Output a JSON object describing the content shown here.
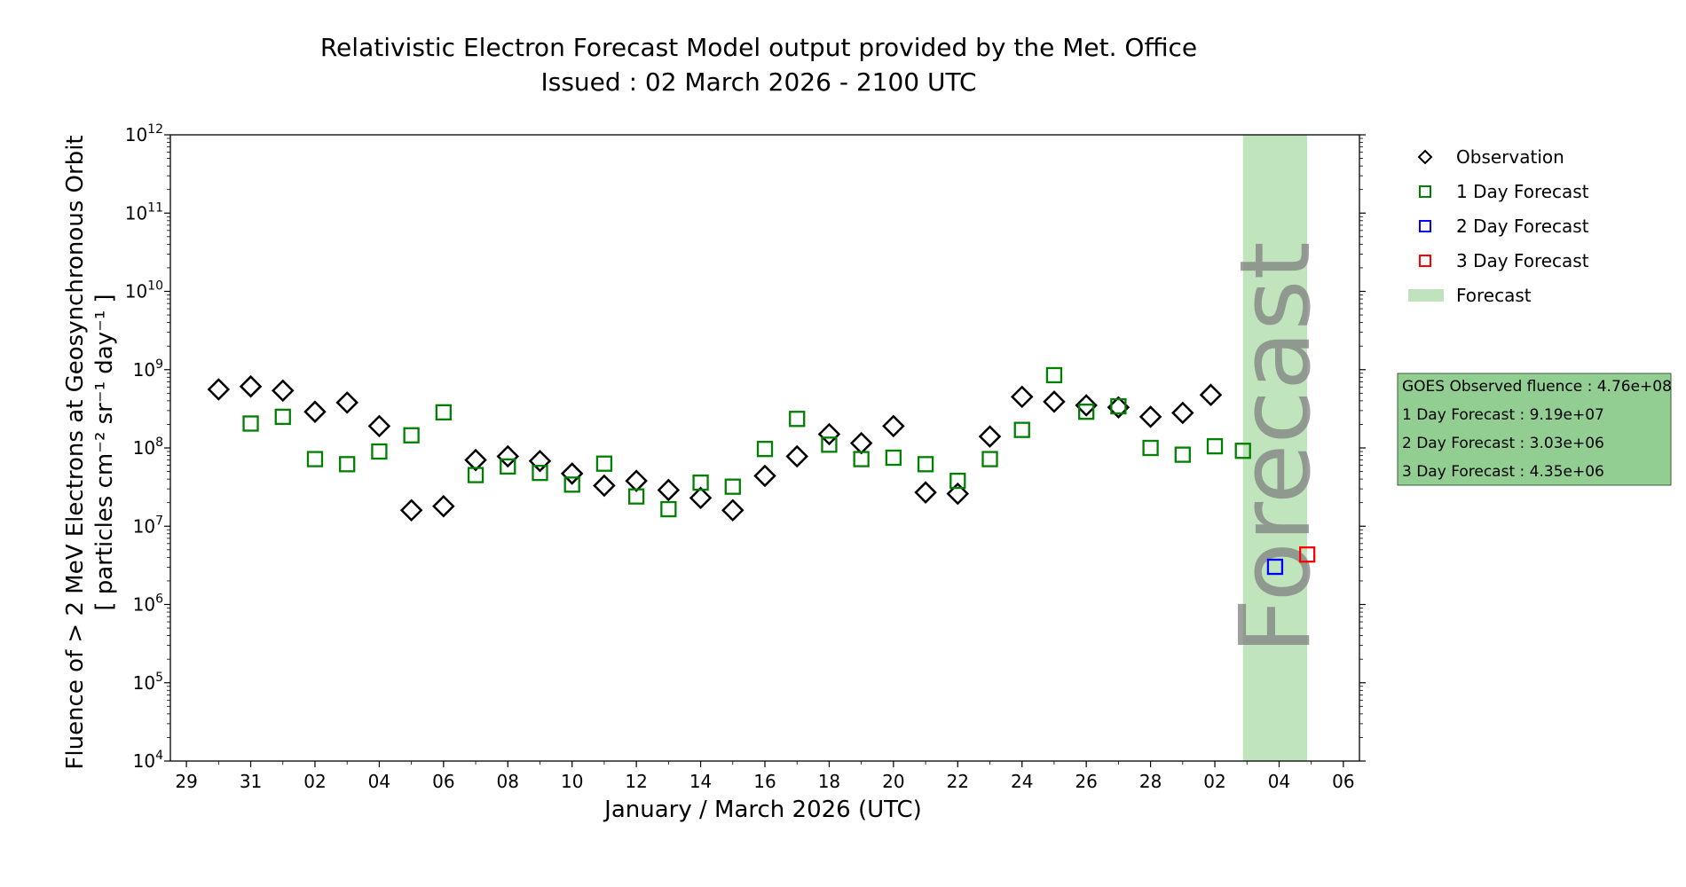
{
  "chart_data": {
    "type": "scatter",
    "title": "Relativistic Electron Forecast Model output provided by the Met. Office",
    "subtitle": "Issued : 02 March 2026 - 2100 UTC",
    "xlabel": "January / March 2026 (UTC)",
    "ylabel_line1": "Fluence of > 2 MeV Electrons at Geosynchronous Orbit",
    "ylabel_line2": "[ particles cm⁻² sr⁻¹ day⁻¹ ]",
    "y_scale": "log",
    "ylim": [
      10000,
      1000000000000
    ],
    "y_ticks": [
      {
        "value": 10000,
        "base": "10",
        "exp": "4"
      },
      {
        "value": 100000,
        "base": "10",
        "exp": "5"
      },
      {
        "value": 1000000,
        "base": "10",
        "exp": "6"
      },
      {
        "value": 10000000,
        "base": "10",
        "exp": "7"
      },
      {
        "value": 100000000,
        "base": "10",
        "exp": "8"
      },
      {
        "value": 1000000000,
        "base": "10",
        "exp": "9"
      },
      {
        "value": 10000000000,
        "base": "10",
        "exp": "10"
      },
      {
        "value": 100000000000,
        "base": "10",
        "exp": "11"
      },
      {
        "value": 1000000000000,
        "base": "10",
        "exp": "12"
      }
    ],
    "xlim": [
      "2026-01-28T12:00",
      "2026-03-06T12:00"
    ],
    "x_ticks": [
      {
        "date": "2026-01-29",
        "label": "29"
      },
      {
        "date": "2026-01-31",
        "label": "31"
      },
      {
        "date": "2026-02-02",
        "label": "02"
      },
      {
        "date": "2026-02-04",
        "label": "04"
      },
      {
        "date": "2026-02-06",
        "label": "06"
      },
      {
        "date": "2026-02-08",
        "label": "08"
      },
      {
        "date": "2026-02-10",
        "label": "10"
      },
      {
        "date": "2026-02-12",
        "label": "12"
      },
      {
        "date": "2026-02-14",
        "label": "14"
      },
      {
        "date": "2026-02-16",
        "label": "16"
      },
      {
        "date": "2026-02-18",
        "label": "18"
      },
      {
        "date": "2026-02-20",
        "label": "20"
      },
      {
        "date": "2026-02-22",
        "label": "22"
      },
      {
        "date": "2026-02-24",
        "label": "24"
      },
      {
        "date": "2026-02-26",
        "label": "26"
      },
      {
        "date": "2026-02-28",
        "label": "28"
      },
      {
        "date": "2026-03-02",
        "label": "02"
      },
      {
        "date": "2026-03-04",
        "label": "04"
      },
      {
        "date": "2026-03-06",
        "label": "06"
      }
    ],
    "series": [
      {
        "name": "Observation",
        "marker": "diamond",
        "color": "#000000",
        "points": [
          {
            "x": "2026-01-30",
            "y": 560000000
          },
          {
            "x": "2026-01-31",
            "y": 610000000
          },
          {
            "x": "2026-02-01",
            "y": 540000000
          },
          {
            "x": "2026-02-02",
            "y": 290000000
          },
          {
            "x": "2026-02-03",
            "y": 380000000
          },
          {
            "x": "2026-02-04",
            "y": 190000000
          },
          {
            "x": "2026-02-05",
            "y": 16000000
          },
          {
            "x": "2026-02-06",
            "y": 18000000
          },
          {
            "x": "2026-02-07",
            "y": 70000000
          },
          {
            "x": "2026-02-08",
            "y": 78000000
          },
          {
            "x": "2026-02-09",
            "y": 68000000
          },
          {
            "x": "2026-02-10",
            "y": 47000000
          },
          {
            "x": "2026-02-11",
            "y": 33000000
          },
          {
            "x": "2026-02-12",
            "y": 38000000
          },
          {
            "x": "2026-02-13",
            "y": 29000000
          },
          {
            "x": "2026-02-14",
            "y": 23000000
          },
          {
            "x": "2026-02-15",
            "y": 16000000
          },
          {
            "x": "2026-02-16",
            "y": 44000000
          },
          {
            "x": "2026-02-17",
            "y": 78000000
          },
          {
            "x": "2026-02-18",
            "y": 150000000
          },
          {
            "x": "2026-02-19",
            "y": 115000000
          },
          {
            "x": "2026-02-20",
            "y": 190000000
          },
          {
            "x": "2026-02-21",
            "y": 27000000
          },
          {
            "x": "2026-02-22",
            "y": 26000000
          },
          {
            "x": "2026-02-23",
            "y": 140000000
          },
          {
            "x": "2026-02-24",
            "y": 450000000
          },
          {
            "x": "2026-02-25",
            "y": 390000000
          },
          {
            "x": "2026-02-26",
            "y": 350000000
          },
          {
            "x": "2026-02-27",
            "y": 330000000
          },
          {
            "x": "2026-02-28",
            "y": 250000000
          },
          {
            "x": "2026-03-01",
            "y": 280000000
          },
          {
            "x": "2026-03-01T21:00",
            "y": 476000000
          }
        ]
      },
      {
        "name": "1 Day Forecast",
        "marker": "square",
        "color": "#008000",
        "points": [
          {
            "x": "2026-01-31",
            "y": 205000000
          },
          {
            "x": "2026-02-01",
            "y": 250000000
          },
          {
            "x": "2026-02-02",
            "y": 72000000
          },
          {
            "x": "2026-02-03",
            "y": 62000000
          },
          {
            "x": "2026-02-04",
            "y": 90000000
          },
          {
            "x": "2026-02-05",
            "y": 145000000
          },
          {
            "x": "2026-02-06",
            "y": 285000000
          },
          {
            "x": "2026-02-07",
            "y": 45000000
          },
          {
            "x": "2026-02-08",
            "y": 58000000
          },
          {
            "x": "2026-02-09",
            "y": 48000000
          },
          {
            "x": "2026-02-10",
            "y": 34000000
          },
          {
            "x": "2026-02-11",
            "y": 63000000
          },
          {
            "x": "2026-02-12",
            "y": 24000000
          },
          {
            "x": "2026-02-13",
            "y": 16500000
          },
          {
            "x": "2026-02-14",
            "y": 36000000
          },
          {
            "x": "2026-02-15",
            "y": 32000000
          },
          {
            "x": "2026-02-16",
            "y": 97000000
          },
          {
            "x": "2026-02-17",
            "y": 235000000
          },
          {
            "x": "2026-02-18",
            "y": 110000000
          },
          {
            "x": "2026-02-19",
            "y": 72000000
          },
          {
            "x": "2026-02-20",
            "y": 75000000
          },
          {
            "x": "2026-02-21",
            "y": 62000000
          },
          {
            "x": "2026-02-22",
            "y": 38000000
          },
          {
            "x": "2026-02-23",
            "y": 72000000
          },
          {
            "x": "2026-02-24",
            "y": 170000000
          },
          {
            "x": "2026-02-25",
            "y": 850000000
          },
          {
            "x": "2026-02-26",
            "y": 290000000
          },
          {
            "x": "2026-02-27",
            "y": 340000000
          },
          {
            "x": "2026-02-28",
            "y": 100000000
          },
          {
            "x": "2026-03-01",
            "y": 82000000
          },
          {
            "x": "2026-03-02",
            "y": 105000000
          },
          {
            "x": "2026-03-02T21:00",
            "y": 91900000
          }
        ]
      },
      {
        "name": "2 Day Forecast",
        "marker": "square",
        "color": "#0000ff",
        "points": [
          {
            "x": "2026-03-03T21:00",
            "y": 3030000
          }
        ]
      },
      {
        "name": "3 Day Forecast",
        "marker": "square",
        "color": "#ff0000",
        "points": [
          {
            "x": "2026-03-04T21:00",
            "y": 4350000
          }
        ]
      }
    ],
    "forecast_band": {
      "label": "Forecast",
      "start": "2026-03-02T21:00",
      "end": "2026-03-04T21:00",
      "color": "#c0e4bc",
      "legend_color": "#bfe3bc"
    },
    "legend": {
      "placement": "right-outside",
      "items": [
        {
          "label": "Observation",
          "marker": "diamond",
          "color": "#000000"
        },
        {
          "label": "1 Day Forecast",
          "marker": "square",
          "color": "#008000"
        },
        {
          "label": "2 Day Forecast",
          "marker": "square",
          "color": "#0000ff"
        },
        {
          "label": "3 Day Forecast",
          "marker": "square",
          "color": "#ff0000"
        },
        {
          "label": "Forecast",
          "marker": "patch",
          "color": "#bfe3bc"
        }
      ]
    },
    "info_box": {
      "background": "#92ce92",
      "lines": [
        "GOES Observed fluence : 4.76e+08",
        "1 Day Forecast : 9.19e+07",
        "2 Day Forecast : 3.03e+06",
        "3 Day Forecast : 4.35e+06"
      ]
    }
  }
}
